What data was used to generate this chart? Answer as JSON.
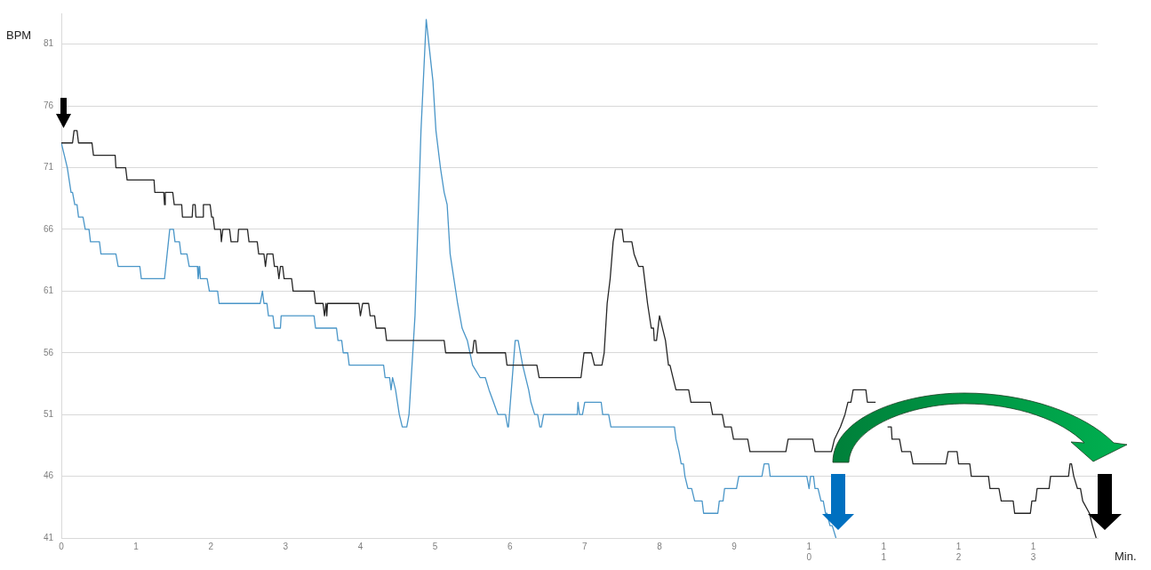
{
  "chart_data": {
    "type": "line",
    "xlabel": "Min.",
    "ylabel": "BPM",
    "xlim": [
      0,
      13.86
    ],
    "ylim": [
      41,
      83.5
    ],
    "xticks": [
      0,
      1,
      2,
      3,
      4,
      5,
      6,
      7,
      8,
      9,
      {
        "value": 10,
        "label": "1\n0"
      },
      {
        "value": 11,
        "label": "1\n1"
      },
      {
        "value": 12,
        "label": "1\n2"
      },
      {
        "value": 13,
        "label": "1\n3"
      }
    ],
    "yticks": [
      41,
      46,
      51,
      56,
      61,
      66,
      71,
      76,
      81
    ],
    "grid": "y",
    "legend": false,
    "marker": "none",
    "line_style": "solid",
    "series": [
      {
        "color": "#262626",
        "x": [
          0,
          0.15,
          0.17,
          0.21,
          0.23,
          0.41,
          0.43,
          0.72,
          0.73,
          0.86,
          0.88,
          1.24,
          1.25,
          1.37,
          1.38,
          1.39,
          1.49,
          1.51,
          1.61,
          1.62,
          1.75,
          1.76,
          1.79,
          1.8,
          1.89,
          1.9,
          1.99,
          2.01,
          2.03,
          2.05,
          2.13,
          2.14,
          2.16,
          2.25,
          2.27,
          2.36,
          2.37,
          2.49,
          2.51,
          2.62,
          2.64,
          2.71,
          2.73,
          2.75,
          2.83,
          2.85,
          2.89,
          2.91,
          2.93,
          2.96,
          2.98,
          3.08,
          3.1,
          3.38,
          3.4,
          3.5,
          3.52,
          3.54,
          3.55,
          3.56,
          3.98,
          4,
          4.03,
          4.11,
          4.13,
          4.19,
          4.21,
          4.33,
          4.35,
          5.12,
          5.14,
          5.5,
          5.52,
          5.54,
          5.56,
          5.94,
          5.96,
          6.36,
          6.39,
          6.95,
          6.99,
          7.09,
          7.13,
          7.23,
          7.26,
          7.3,
          7.34,
          7.38,
          7.41,
          7.5,
          7.52,
          7.63,
          7.66,
          7.72,
          7.78,
          7.84,
          7.89,
          7.92,
          7.93,
          7.96,
          8,
          8.08,
          8.12,
          8.14,
          8.18,
          8.22,
          8.39,
          8.42,
          8.68,
          8.71,
          8.84,
          8.87,
          8.96,
          8.99,
          9.18,
          9.21,
          9.69,
          9.72,
          10.05,
          10.08,
          10.3,
          10.34,
          10.42,
          10.48,
          10.52,
          10.56,
          10.59,
          10.76,
          10.78,
          10.89,
          10.91,
          11.03,
          11.05,
          11.1,
          11.11,
          11.21,
          11.24,
          11.36,
          11.39,
          11.83,
          11.86,
          11.98,
          12,
          12.15,
          12.17,
          12.4,
          12.42,
          12.54,
          12.57,
          12.73,
          12.75,
          12.96,
          12.98,
          13.03,
          13.05,
          13.21,
          13.23,
          13.47,
          13.49,
          13.51,
          13.54,
          13.59,
          13.63,
          13.66,
          13.75,
          13.79,
          13.84
        ],
        "values": [
          73,
          73,
          74,
          74,
          73,
          73,
          72,
          72,
          71,
          71,
          70,
          70,
          69,
          69,
          68,
          69,
          69,
          68,
          68,
          67,
          67,
          68,
          68,
          67,
          67,
          68,
          68,
          67,
          67,
          66,
          66,
          65,
          66,
          66,
          65,
          65,
          66,
          66,
          65,
          65,
          64,
          64,
          63,
          64,
          64,
          63,
          63,
          62,
          63,
          63,
          62,
          62,
          61,
          61,
          60,
          60,
          59,
          60,
          59,
          60,
          60,
          59,
          60,
          60,
          59,
          59,
          58,
          58,
          57,
          57,
          56,
          56,
          57,
          57,
          56,
          56,
          55,
          55,
          54,
          54,
          56,
          56,
          55,
          55,
          56,
          60,
          62,
          65,
          66,
          66,
          65,
          65,
          64,
          63,
          63,
          60,
          58,
          58,
          57,
          57,
          59,
          57,
          55,
          55,
          54,
          53,
          53,
          52,
          52,
          51,
          51,
          50,
          50,
          49,
          49,
          48,
          48,
          49,
          49,
          48,
          48,
          49,
          50,
          51,
          52,
          52,
          53,
          53,
          52,
          52,
          null,
          null,
          50,
          50,
          49,
          49,
          48,
          48,
          47,
          47,
          48,
          48,
          47,
          47,
          46,
          46,
          45,
          45,
          44,
          44,
          43,
          43,
          44,
          44,
          45,
          45,
          46,
          46,
          47,
          47,
          46,
          45,
          45,
          44,
          43,
          42,
          41
        ]
      },
      {
        "color": "#4a96c8",
        "x": [
          0,
          0.04,
          0.08,
          0.13,
          0.15,
          0.18,
          0.21,
          0.23,
          0.29,
          0.32,
          0.37,
          0.39,
          0.51,
          0.53,
          0.73,
          0.76,
          1.05,
          1.07,
          1.38,
          1.45,
          1.5,
          1.52,
          1.58,
          1.6,
          1.68,
          1.71,
          1.82,
          1.83,
          1.85,
          1.86,
          1.95,
          1.98,
          2.09,
          2.11,
          2.66,
          2.69,
          2.71,
          2.75,
          2.77,
          2.83,
          2.85,
          2.93,
          2.94,
          3.38,
          3.4,
          3.68,
          3.7,
          3.75,
          3.77,
          3.83,
          3.85,
          4.31,
          4.33,
          4.39,
          4.41,
          4.43,
          4.47,
          4.52,
          4.56,
          4.62,
          4.65,
          4.73,
          4.81,
          4.88,
          4.97,
          5.01,
          5.07,
          5.12,
          5.16,
          5.2,
          5.25,
          5.3,
          5.36,
          5.43,
          5.5,
          5.6,
          5.67,
          5.72,
          5.78,
          5.84,
          5.94,
          5.97,
          5.98,
          6.07,
          6.11,
          6.14,
          6.17,
          6.21,
          6.25,
          6.28,
          6.33,
          6.37,
          6.4,
          6.42,
          6.45,
          6.9,
          6.91,
          6.93,
          6.97,
          7,
          7.22,
          7.24,
          7.32,
          7.35,
          8.2,
          8.22,
          8.26,
          8.29,
          8.32,
          8.34,
          8.38,
          8.43,
          8.47,
          8.57,
          8.59,
          8.78,
          8.8,
          8.85,
          8.87,
          9.03,
          9.06,
          9.37,
          9.4,
          9.46,
          9.48,
          9.97,
          10,
          10.02,
          10.06,
          10.08,
          10.12,
          10.16,
          10.19,
          10.22,
          10.24,
          10.28,
          10.31,
          10.36
        ],
        "values": [
          73,
          72,
          71,
          69,
          69,
          68,
          68,
          67,
          67,
          66,
          66,
          65,
          65,
          64,
          64,
          63,
          63,
          62,
          62,
          66,
          66,
          65,
          65,
          64,
          64,
          63,
          63,
          62,
          63,
          62,
          62,
          61,
          61,
          60,
          60,
          61,
          60,
          60,
          59,
          59,
          58,
          58,
          59,
          59,
          58,
          58,
          57,
          57,
          56,
          56,
          55,
          55,
          54,
          54,
          53,
          54,
          53,
          51,
          50,
          50,
          51,
          59,
          74,
          83,
          78,
          74,
          71,
          69,
          68,
          64,
          62,
          60,
          58,
          57,
          55,
          54,
          54,
          53,
          52,
          51,
          51,
          50,
          50,
          57,
          57,
          56,
          55,
          54,
          53,
          52,
          51,
          51,
          50,
          50,
          51,
          51,
          52,
          51,
          51,
          52,
          52,
          51,
          51,
          50,
          50,
          49,
          48,
          47,
          47,
          46,
          45,
          45,
          44,
          44,
          43,
          43,
          44,
          44,
          45,
          45,
          46,
          46,
          47,
          47,
          46,
          46,
          45,
          46,
          46,
          45,
          45,
          44,
          44,
          43,
          43,
          42,
          42,
          41
        ]
      }
    ]
  }
}
